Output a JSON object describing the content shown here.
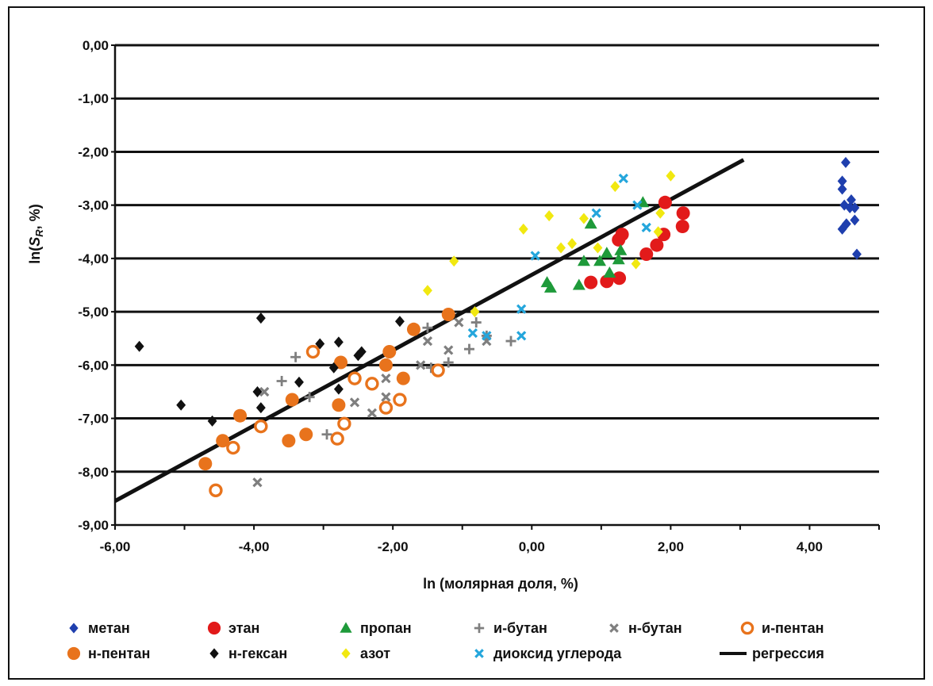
{
  "chart_data": {
    "type": "scatter",
    "xlabel": "ln (молярная доля, %)",
    "ylabel_prefix": "ln(",
    "ylabel_var": "S",
    "ylabel_sub": "R",
    "ylabel_suffix": ", %)",
    "xlim": [
      -6,
      5
    ],
    "ylim": [
      -9,
      0
    ],
    "xticks": [
      -6,
      -4,
      -2,
      0,
      2,
      4
    ],
    "xtick_labels": [
      "-6,00",
      "-4,00",
      "-2,00",
      "0,00",
      "2,00",
      "4,00"
    ],
    "yticks": [
      0,
      -1,
      -2,
      -3,
      -4,
      -5,
      -6,
      -7,
      -8,
      -9
    ],
    "ytick_labels": [
      "0,00",
      "-1,00",
      "-2,00",
      "-3,00",
      "-4,00",
      "-5,00",
      "-6,00",
      "-7,00",
      "-8,00",
      "-9,00"
    ],
    "grid": "horizontal",
    "legend_position": "bottom",
    "series": [
      {
        "name": "метан",
        "marker": "diamond",
        "color": "#1f3fae",
        "points": [
          [
            4.52,
            -2.2
          ],
          [
            4.47,
            -2.55
          ],
          [
            4.47,
            -2.7
          ],
          [
            4.6,
            -2.9
          ],
          [
            4.5,
            -3.0
          ],
          [
            4.58,
            -3.05
          ],
          [
            4.65,
            -3.05
          ],
          [
            4.53,
            -3.35
          ],
          [
            4.65,
            -3.28
          ],
          [
            4.47,
            -3.45
          ],
          [
            4.68,
            -3.92
          ]
        ]
      },
      {
        "name": "этан",
        "marker": "circle",
        "color": "#e21a1a",
        "points": [
          [
            1.92,
            -2.95
          ],
          [
            2.18,
            -3.15
          ],
          [
            2.17,
            -3.4
          ],
          [
            1.3,
            -3.55
          ],
          [
            1.25,
            -3.65
          ],
          [
            1.9,
            -3.55
          ],
          [
            1.8,
            -3.75
          ],
          [
            1.65,
            -3.92
          ],
          [
            0.85,
            -4.45
          ],
          [
            1.08,
            -4.43
          ],
          [
            1.26,
            -4.37
          ]
        ]
      },
      {
        "name": "пропан",
        "marker": "triangle",
        "color": "#1e9a3a",
        "points": [
          [
            1.6,
            -2.95
          ],
          [
            0.85,
            -3.35
          ],
          [
            1.28,
            -3.85
          ],
          [
            1.08,
            -3.9
          ],
          [
            0.75,
            -4.05
          ],
          [
            0.98,
            -4.05
          ],
          [
            1.25,
            -4.02
          ],
          [
            1.12,
            -4.27
          ],
          [
            0.22,
            -4.45
          ],
          [
            0.27,
            -4.55
          ],
          [
            0.68,
            -4.5
          ]
        ]
      },
      {
        "name": "и-бутан",
        "marker": "plus",
        "color": "#7f7f7f",
        "points": [
          [
            -3.4,
            -5.85
          ],
          [
            -3.6,
            -6.3
          ],
          [
            -3.2,
            -6.6
          ],
          [
            -2.95,
            -7.3
          ],
          [
            -1.5,
            -5.3
          ],
          [
            -0.8,
            -5.2
          ],
          [
            -0.65,
            -5.45
          ],
          [
            -1.2,
            -5.95
          ],
          [
            -1.45,
            -6.05
          ],
          [
            -0.9,
            -5.7
          ],
          [
            -0.3,
            -5.55
          ]
        ]
      },
      {
        "name": "н-бутан",
        "marker": "cross",
        "color": "#7f7f7f",
        "points": [
          [
            -3.85,
            -6.5
          ],
          [
            -3.95,
            -8.2
          ],
          [
            -2.55,
            -6.7
          ],
          [
            -2.3,
            -6.9
          ],
          [
            -2.1,
            -6.25
          ],
          [
            -2.1,
            -6.6
          ],
          [
            -1.5,
            -5.55
          ],
          [
            -1.6,
            -6.0
          ],
          [
            -1.2,
            -5.72
          ],
          [
            -1.05,
            -5.2
          ],
          [
            -0.65,
            -5.55
          ]
        ]
      },
      {
        "name": "и-пентан",
        "marker": "ring",
        "color": "#e8731c",
        "points": [
          [
            -3.15,
            -5.75
          ],
          [
            -2.55,
            -6.25
          ],
          [
            -2.3,
            -6.35
          ],
          [
            -2.1,
            -6.8
          ],
          [
            -1.9,
            -6.65
          ],
          [
            -1.35,
            -6.1
          ],
          [
            -3.9,
            -7.15
          ],
          [
            -4.3,
            -7.55
          ],
          [
            -2.7,
            -7.1
          ],
          [
            -2.8,
            -7.38
          ],
          [
            -4.55,
            -8.35
          ]
        ]
      },
      {
        "name": "н-пентан",
        "marker": "circle",
        "color": "#e8731c",
        "points": [
          [
            -1.7,
            -5.33
          ],
          [
            -1.2,
            -5.05
          ],
          [
            -2.75,
            -5.95
          ],
          [
            -2.1,
            -6.0
          ],
          [
            -1.85,
            -6.25
          ],
          [
            -2.05,
            -5.75
          ],
          [
            -3.45,
            -6.65
          ],
          [
            -4.2,
            -6.95
          ],
          [
            -2.78,
            -6.75
          ],
          [
            -3.25,
            -7.3
          ],
          [
            -3.5,
            -7.42
          ],
          [
            -4.45,
            -7.42
          ],
          [
            -4.7,
            -7.85
          ]
        ]
      },
      {
        "name": "н-гексан",
        "marker": "diamond",
        "color": "#111111",
        "points": [
          [
            -5.65,
            -5.65
          ],
          [
            -5.05,
            -6.75
          ],
          [
            -4.6,
            -7.05
          ],
          [
            -3.9,
            -5.12
          ],
          [
            -3.05,
            -5.6
          ],
          [
            -2.78,
            -5.57
          ],
          [
            -1.9,
            -5.18
          ],
          [
            -2.45,
            -5.75
          ],
          [
            -2.5,
            -5.82
          ],
          [
            -3.95,
            -6.5
          ],
          [
            -3.35,
            -6.32
          ],
          [
            -3.9,
            -6.8
          ],
          [
            -2.85,
            -6.05
          ],
          [
            -2.78,
            -6.45
          ]
        ]
      },
      {
        "name": "азот",
        "marker": "diamond",
        "color": "#f1e810",
        "points": [
          [
            2.0,
            -2.45
          ],
          [
            1.2,
            -2.65
          ],
          [
            0.25,
            -3.2
          ],
          [
            -0.12,
            -3.45
          ],
          [
            0.75,
            -3.25
          ],
          [
            1.85,
            -3.15
          ],
          [
            0.42,
            -3.8
          ],
          [
            0.58,
            -3.72
          ],
          [
            0.95,
            -3.8
          ],
          [
            1.82,
            -3.5
          ],
          [
            1.5,
            -4.1
          ],
          [
            -1.12,
            -4.05
          ],
          [
            -1.5,
            -4.6
          ],
          [
            -0.82,
            -5.0
          ]
        ]
      },
      {
        "name": "диоксид углерода",
        "marker": "cross",
        "color": "#24a6dc",
        "points": [
          [
            1.32,
            -2.5
          ],
          [
            0.93,
            -3.15
          ],
          [
            1.52,
            -3.0
          ],
          [
            1.65,
            -3.42
          ],
          [
            0.05,
            -3.95
          ],
          [
            -0.15,
            -4.95
          ],
          [
            -0.15,
            -5.45
          ],
          [
            -0.85,
            -5.4
          ],
          [
            -0.65,
            -5.45
          ]
        ]
      }
    ],
    "regression": {
      "name": "регрессия",
      "color": "#111111",
      "x": [
        -6.0,
        3.05
      ],
      "y": [
        -8.55,
        -2.15
      ]
    },
    "legend": [
      {
        "label": "метан",
        "marker": "diamond",
        "color": "#1f3fae"
      },
      {
        "label": "этан",
        "marker": "circle",
        "color": "#e21a1a"
      },
      {
        "label": "пропан",
        "marker": "triangle",
        "color": "#1e9a3a"
      },
      {
        "label": "и-бутан",
        "marker": "plus",
        "color": "#7f7f7f"
      },
      {
        "label": "н-бутан",
        "marker": "cross",
        "color": "#7f7f7f"
      },
      {
        "label": "и-пентан",
        "marker": "ring",
        "color": "#e8731c"
      },
      {
        "label": "н-пентан",
        "marker": "circle",
        "color": "#e8731c"
      },
      {
        "label": "н-гексан",
        "marker": "diamond",
        "color": "#111111"
      },
      {
        "label": "азот",
        "marker": "diamond",
        "color": "#f1e810"
      },
      {
        "label": "диоксид углерода",
        "marker": "cross",
        "color": "#24a6dc"
      },
      {
        "label": "регрессия",
        "marker": "line",
        "color": "#111111"
      }
    ]
  }
}
